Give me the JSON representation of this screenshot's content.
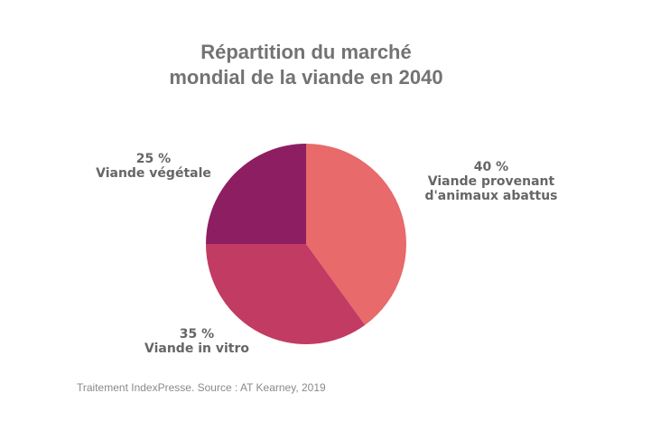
{
  "chart_data": {
    "type": "pie",
    "title": [
      "Répartition du marché",
      "mondial de la viande en 2040"
    ],
    "slices": [
      {
        "label": [
          "Viande provenant",
          "d'animaux abattus"
        ],
        "value": 40,
        "value_label": "40 %",
        "color": "#e86a6a"
      },
      {
        "label": [
          "Viande in vitro"
        ],
        "value": 35,
        "value_label": "35 %",
        "color": "#c23b63"
      },
      {
        "label": [
          "Viande végétale"
        ],
        "value": 25,
        "value_label": "25 %",
        "color": "#8e1e62"
      }
    ],
    "start_angle_deg": 0,
    "direction": "clockwise",
    "legend": "none"
  },
  "source_note": "Traitement IndexPresse. Source : AT Kearney, 2019"
}
